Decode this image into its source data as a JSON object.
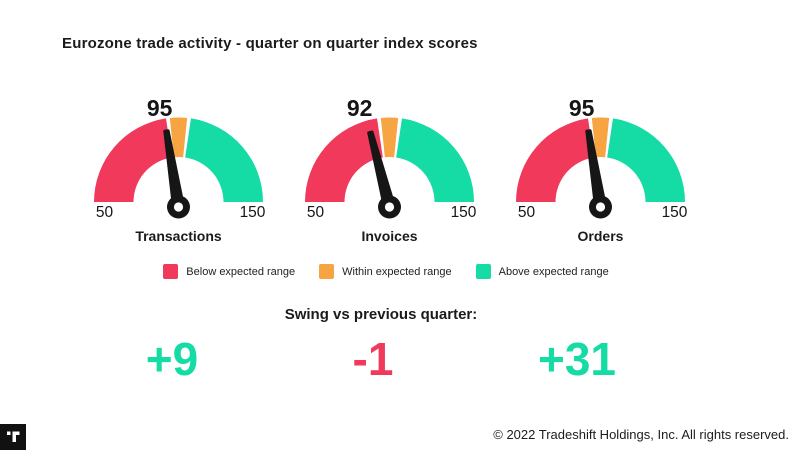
{
  "header": {
    "title": "Eurozone trade activity - quarter on quarter index scores"
  },
  "chart_data": {
    "type": "gauge",
    "title": "Eurozone trade activity - quarter on quarter index scores",
    "min": 50,
    "max": 150,
    "tick_labels": [
      "50",
      "150"
    ],
    "segments": [
      {
        "label": "Below expected range",
        "from": 50,
        "to": 96,
        "color": "#F0395B"
      },
      {
        "label": "Within expected range",
        "from": 96,
        "to": 104,
        "color": "#F7A542"
      },
      {
        "label": "Above expected range",
        "from": 104,
        "to": 150,
        "color": "#15DBA4"
      }
    ],
    "gauges": [
      {
        "label": "Transactions",
        "value": 95,
        "swing": "+9",
        "swing_color": "#15DBA4"
      },
      {
        "label": "Invoices",
        "value": 92,
        "swing": "-1",
        "swing_color": "#F0395B"
      },
      {
        "label": "Orders",
        "value": 95,
        "swing": "+31",
        "swing_color": "#15DBA4"
      }
    ],
    "needle_color": "#161616",
    "legend_position": "bottom-center",
    "grid": false
  },
  "legend": [
    {
      "label": "Below expected range",
      "color": "#F0395B"
    },
    {
      "label": "Within expected range",
      "color": "#F7A542"
    },
    {
      "label": "Above expected range",
      "color": "#15DBA4"
    }
  ],
  "swing": {
    "heading": "Swing vs previous quarter:"
  },
  "footer": {
    "logo": "tradeshift-logo",
    "copyright": "© 2022 Tradeshift Holdings, Inc. All rights reserved."
  }
}
